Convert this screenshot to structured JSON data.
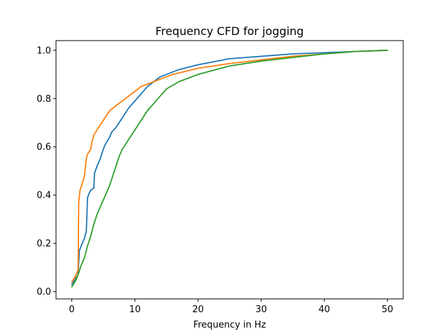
{
  "chart_data": {
    "type": "line",
    "title": "Frequency CFD for jogging",
    "xlabel": "Frequency in Hz",
    "ylabel": "",
    "xlim": [
      -2.5,
      52.5
    ],
    "ylim": [
      -0.03,
      1.04
    ],
    "xticks": [
      0,
      10,
      20,
      30,
      40,
      50
    ],
    "yticks": [
      0.0,
      0.2,
      0.4,
      0.6,
      0.8,
      1.0
    ],
    "ytick_labels": [
      "0.0",
      "0.2",
      "0.4",
      "0.6",
      "0.8",
      "1.0"
    ],
    "grid": false,
    "legend": false,
    "series": [
      {
        "color": "#1f77b4",
        "x": [
          0,
          0.5,
          1,
          1.2,
          1.5,
          2,
          2.3,
          2.5,
          2.8,
          3,
          3.5,
          3.6,
          4,
          4.5,
          5,
          5.3,
          6,
          6.3,
          7,
          7.5,
          8,
          8.5,
          9,
          10,
          11,
          12,
          13,
          14,
          15,
          17,
          20,
          25,
          30,
          35,
          40,
          45,
          50
        ],
        "y": [
          0.03,
          0.05,
          0.07,
          0.17,
          0.19,
          0.22,
          0.25,
          0.39,
          0.41,
          0.42,
          0.43,
          0.49,
          0.52,
          0.55,
          0.59,
          0.61,
          0.64,
          0.66,
          0.68,
          0.7,
          0.72,
          0.74,
          0.76,
          0.79,
          0.82,
          0.85,
          0.87,
          0.89,
          0.9,
          0.92,
          0.94,
          0.965,
          0.975,
          0.985,
          0.99,
          0.995,
          1.0
        ]
      },
      {
        "color": "#ff7f0e",
        "x": [
          0,
          0.5,
          1,
          1.1,
          1.3,
          1.7,
          2,
          2.3,
          2.5,
          3,
          3.2,
          3.5,
          4,
          4.5,
          5,
          5.5,
          6,
          7,
          8,
          9,
          10,
          11,
          12,
          14,
          16,
          20,
          25,
          30,
          35,
          40,
          45,
          50
        ],
        "y": [
          0.04,
          0.06,
          0.09,
          0.37,
          0.42,
          0.45,
          0.48,
          0.55,
          0.57,
          0.59,
          0.62,
          0.65,
          0.67,
          0.69,
          0.71,
          0.73,
          0.75,
          0.77,
          0.79,
          0.81,
          0.83,
          0.85,
          0.86,
          0.88,
          0.9,
          0.925,
          0.945,
          0.96,
          0.975,
          0.985,
          0.995,
          1.0
        ]
      },
      {
        "color": "#2ca02c",
        "x": [
          0,
          0.5,
          1,
          1.5,
          2,
          2.5,
          3,
          3.5,
          4,
          4.5,
          5,
          5.5,
          6,
          6.5,
          7,
          7.5,
          8,
          9,
          10,
          11,
          12,
          13,
          14,
          15,
          17,
          20,
          25,
          30,
          35,
          40,
          45,
          50
        ],
        "y": [
          0.02,
          0.04,
          0.07,
          0.11,
          0.14,
          0.19,
          0.23,
          0.28,
          0.32,
          0.35,
          0.38,
          0.41,
          0.44,
          0.48,
          0.52,
          0.56,
          0.59,
          0.63,
          0.67,
          0.71,
          0.75,
          0.78,
          0.81,
          0.84,
          0.87,
          0.9,
          0.935,
          0.955,
          0.97,
          0.985,
          0.995,
          1.0
        ]
      }
    ]
  }
}
